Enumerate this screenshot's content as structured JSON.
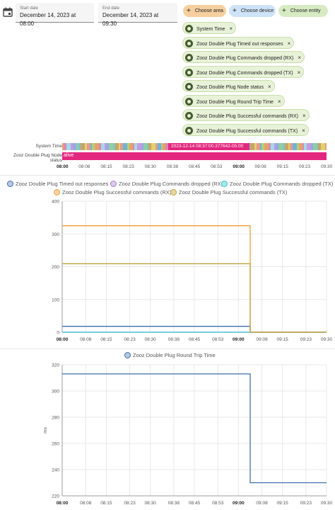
{
  "date_range": {
    "start_label": "Start date",
    "start_value": "December 14, 2023 at 08:00",
    "end_label": "End date",
    "end_value": "December 14, 2023 at 09:30",
    "calendar_icon": "calendar-icon"
  },
  "target_picker": {
    "area": {
      "label": "Choose area",
      "color": "#f6cf9e"
    },
    "device": {
      "label": "Choose device",
      "color": "#cfe3f8"
    },
    "entity": {
      "label": "Choose entity",
      "color": "#d7ebc3"
    }
  },
  "chips": [
    {
      "label": "System Time",
      "icon": "eye-icon"
    },
    {
      "label": "Zooz Double Plug Timed out responses",
      "icon": "eye-icon"
    },
    {
      "label": "Zooz Double Plug Commands dropped (RX)",
      "icon": "eye-icon"
    },
    {
      "label": "Zooz Double Plug Commands dropped (TX)",
      "icon": "eye-icon"
    },
    {
      "label": "Zooz Double Plug Node status",
      "icon": "heart-pulse-icon"
    },
    {
      "label": "Zooz Double Plug Round Trip Time",
      "icon": "clock-icon"
    },
    {
      "label": "Zooz Double Plug Successful commands (RX)",
      "icon": "eye-icon"
    },
    {
      "label": "Zooz Double Plug Successful commands (TX)",
      "icon": "eye-icon"
    }
  ],
  "timeline": {
    "rows": [
      {
        "label": "System Time"
      },
      {
        "label": "Zooz Double Plug Node status",
        "value": "alive",
        "color": "#e3277f"
      }
    ],
    "tooltip": "2023-12-14 08:37:00.377642-05:00",
    "ticks": [
      "08:00",
      "08:08",
      "08:15",
      "08:23",
      "08:30",
      "08:38",
      "08:45",
      "08:53",
      "09:00",
      "09:08",
      "09:15",
      "09:23",
      "09:30"
    ]
  },
  "chart_data": [
    {
      "type": "line",
      "x_ticks": [
        "08:00",
        "08:08",
        "08:15",
        "08:23",
        "08:30",
        "08:38",
        "08:45",
        "08:53",
        "09:00",
        "09:08",
        "09:15",
        "09:23",
        "09:30"
      ],
      "ylim": [
        0,
        400
      ],
      "y_ticks": [
        0,
        100,
        200,
        300,
        400
      ],
      "grid": true,
      "legend_position": "top",
      "series": [
        {
          "name": "Zooz Double Plug Timed out responses",
          "color": "#3f6fb0",
          "x": [
            "08:00",
            "09:04",
            "09:04",
            "09:30"
          ],
          "values": [
            18,
            18,
            0,
            0
          ]
        },
        {
          "name": "Zooz Double Plug Commands dropped (RX)",
          "color": "#a678c9",
          "x": [
            "08:00",
            "09:30"
          ],
          "values": [
            0,
            0
          ]
        },
        {
          "name": "Zooz Double Plug Commands dropped (TX)",
          "color": "#32c6d2",
          "x": [
            "08:00",
            "09:30"
          ],
          "values": [
            0,
            0
          ]
        },
        {
          "name": "Zooz Double Plug Successful commands (RX)",
          "color": "#f59b33",
          "x": [
            "08:00",
            "09:04",
            "09:04",
            "09:30"
          ],
          "values": [
            325,
            325,
            0,
            0
          ]
        },
        {
          "name": "Zooz Double Plug Successful commands (TX)",
          "color": "#c2a23a",
          "x": [
            "08:00",
            "09:04",
            "09:04",
            "09:30"
          ],
          "values": [
            209,
            209,
            0,
            0
          ]
        }
      ]
    },
    {
      "type": "line",
      "x_ticks": [
        "08:00",
        "08:08",
        "08:15",
        "08:23",
        "08:30",
        "08:38",
        "08:45",
        "08:53",
        "09:00",
        "09:08",
        "09:15",
        "09:23",
        "09:30"
      ],
      "ylabel": "ms",
      "ylim": [
        220,
        320
      ],
      "y_ticks": [
        220,
        240,
        260,
        280,
        300,
        320
      ],
      "grid": true,
      "legend_position": "top",
      "series": [
        {
          "name": "Zooz Double Plug Round Trip Time",
          "color": "#3f6fb0",
          "x": [
            "08:00",
            "09:04",
            "09:04",
            "09:30"
          ],
          "values": [
            313,
            313,
            230,
            230
          ]
        }
      ]
    }
  ]
}
